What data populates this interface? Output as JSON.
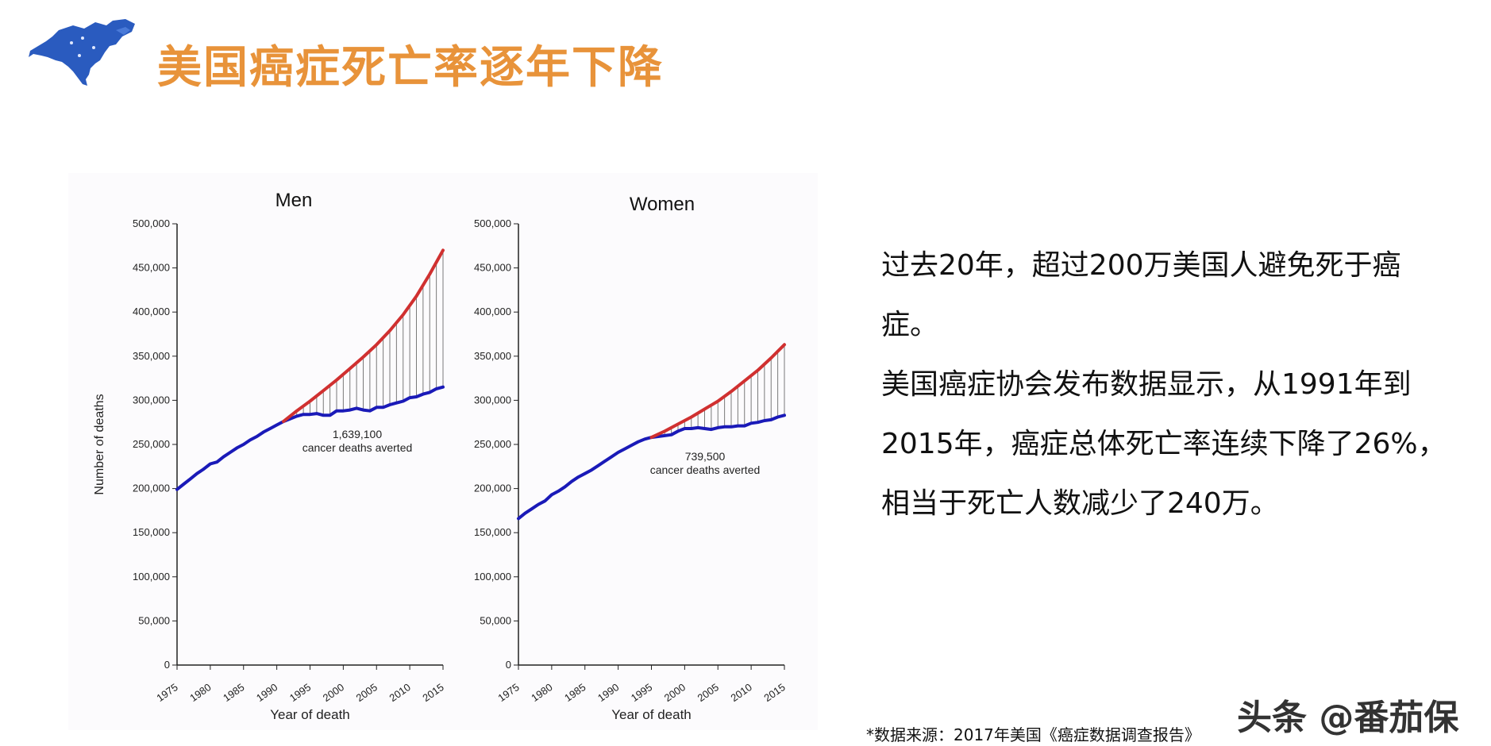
{
  "header": {
    "title": "美国癌症死亡率逐年下降",
    "logo_icon": "north-america-map-icon",
    "title_color": "#E8933A"
  },
  "text_panel": {
    "para1": "过去20年，超过200万美国人避免死于癌症。",
    "para2": "美国癌症协会发布数据显示，从1991年到2015年，癌症总体死亡率连续下降了26%，相当于死亡人数减少了240万。"
  },
  "source_note": "*数据来源：2017年美国《癌症数据调查报告》",
  "watermark": "头条 @番茄保",
  "chart_data": [
    {
      "type": "line",
      "title": "Men",
      "xlabel": "Year of death",
      "ylabel": "Number of deaths",
      "xlim": [
        1975,
        2015
      ],
      "ylim": [
        0,
        500000
      ],
      "x_ticks": [
        "1975",
        "1980",
        "1985",
        "1990",
        "1995",
        "2000",
        "2005",
        "2010",
        "2015"
      ],
      "y_ticks": [
        "0",
        "50,000",
        "100,000",
        "150,000",
        "200,000",
        "250,000",
        "300,000",
        "350,000",
        "400,000",
        "450,000",
        "500,000"
      ],
      "series": [
        {
          "color": "#1a1ab8",
          "x": [
            1975,
            1976,
            1977,
            1978,
            1979,
            1980,
            1981,
            1982,
            1983,
            1984,
            1985,
            1986,
            1987,
            1988,
            1989,
            1990,
            1991,
            1992,
            1993,
            1994,
            1995,
            1996,
            1997,
            1998,
            1999,
            2000,
            2001,
            2002,
            2003,
            2004,
            2005,
            2006,
            2007,
            2008,
            2009,
            2010,
            2011,
            2012,
            2013,
            2014,
            2015
          ],
          "values": [
            199000,
            205000,
            211000,
            217000,
            222000,
            228000,
            230000,
            236000,
            241000,
            246000,
            250000,
            255000,
            259000,
            264000,
            268000,
            272000,
            276000,
            279000,
            282000,
            284000,
            284000,
            285000,
            283000,
            283000,
            288000,
            288000,
            289000,
            291000,
            289000,
            288000,
            292000,
            292000,
            295000,
            297000,
            299000,
            303000,
            304000,
            307000,
            309000,
            313000,
            315000
          ]
        },
        {
          "color": "#d03030",
          "x": [
            1991,
            1993,
            1995,
            1997,
            1999,
            2001,
            2003,
            2005,
            2007,
            2009,
            2011,
            2013,
            2015
          ],
          "values": [
            276000,
            288000,
            299000,
            311000,
            323000,
            336000,
            349000,
            363000,
            379000,
            397000,
            418000,
            443000,
            470000
          ]
        }
      ],
      "annotations": [
        "1,639,100",
        "cancer deaths averted"
      ]
    },
    {
      "type": "line",
      "title": "Women",
      "xlabel": "Year of death",
      "xlim": [
        1975,
        2015
      ],
      "ylim": [
        0,
        500000
      ],
      "x_ticks": [
        "1975",
        "1980",
        "1985",
        "1990",
        "1995",
        "2000",
        "2005",
        "2010",
        "2015"
      ],
      "y_ticks": [
        "0",
        "50,000",
        "100,000",
        "150,000",
        "200,000",
        "250,000",
        "300,000",
        "350,000",
        "400,000",
        "450,000",
        "500,000"
      ],
      "series": [
        {
          "color": "#1a1ab8",
          "x": [
            1975,
            1976,
            1977,
            1978,
            1979,
            1980,
            1981,
            1982,
            1983,
            1984,
            1985,
            1986,
            1987,
            1988,
            1989,
            1990,
            1991,
            1992,
            1993,
            1994,
            1995,
            1996,
            1997,
            1998,
            1999,
            2000,
            2001,
            2002,
            2003,
            2004,
            2005,
            2006,
            2007,
            2008,
            2009,
            2010,
            2011,
            2012,
            2013,
            2014,
            2015
          ],
          "values": [
            166000,
            172000,
            177000,
            182000,
            186000,
            193000,
            197000,
            202000,
            208000,
            213000,
            217000,
            221000,
            226000,
            231000,
            236000,
            241000,
            245000,
            249000,
            253000,
            256000,
            258000,
            259000,
            260000,
            261000,
            265000,
            268000,
            268000,
            269000,
            268000,
            267000,
            269000,
            270000,
            270000,
            271000,
            271000,
            274000,
            275000,
            277000,
            278000,
            281000,
            283000
          ]
        },
        {
          "color": "#d03030",
          "x": [
            1995,
            1997,
            1999,
            2001,
            2003,
            2005,
            2007,
            2009,
            2011,
            2013,
            2015
          ],
          "values": [
            258000,
            265000,
            273000,
            281000,
            290000,
            299000,
            310000,
            322000,
            334000,
            348000,
            363000
          ]
        }
      ],
      "annotations": [
        "739,500",
        "cancer deaths averted"
      ]
    }
  ]
}
